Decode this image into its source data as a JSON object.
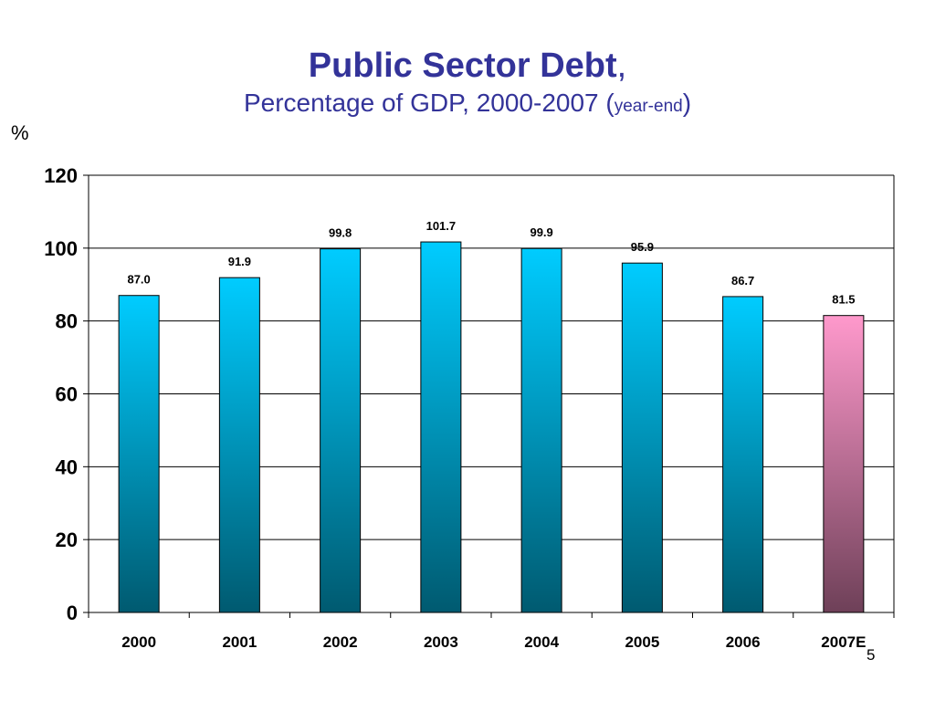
{
  "title": {
    "main": "Public Sector Debt",
    "comma": ",",
    "line2_prefix": "Percentage of GDP, 2000-2007 (",
    "line2_small": "year-end",
    "line2_suffix": ")"
  },
  "unit_label": "%",
  "page_number": "5",
  "colors": {
    "bar_top": "#00ccff",
    "bar_bottom": "#005a70",
    "highlight_top": "#ff99cc",
    "highlight_bottom": "#6e4058",
    "grid": "#000000"
  },
  "chart_data": {
    "type": "bar",
    "categories": [
      "2000",
      "2001",
      "2002",
      "2003",
      "2004",
      "2005",
      "2006",
      "2007E"
    ],
    "values": [
      87.0,
      91.9,
      99.8,
      101.7,
      99.9,
      95.9,
      86.7,
      81.5
    ],
    "data_labels": [
      "87.0",
      "91.9",
      "99.8",
      "101.7",
      "99.9",
      "95.9",
      "86.7",
      "81.5"
    ],
    "highlighted_category": "2007E",
    "ylim": [
      0,
      120
    ],
    "yticks": [
      0,
      20,
      40,
      60,
      80,
      100,
      120
    ],
    "grid": true,
    "legend": false
  }
}
